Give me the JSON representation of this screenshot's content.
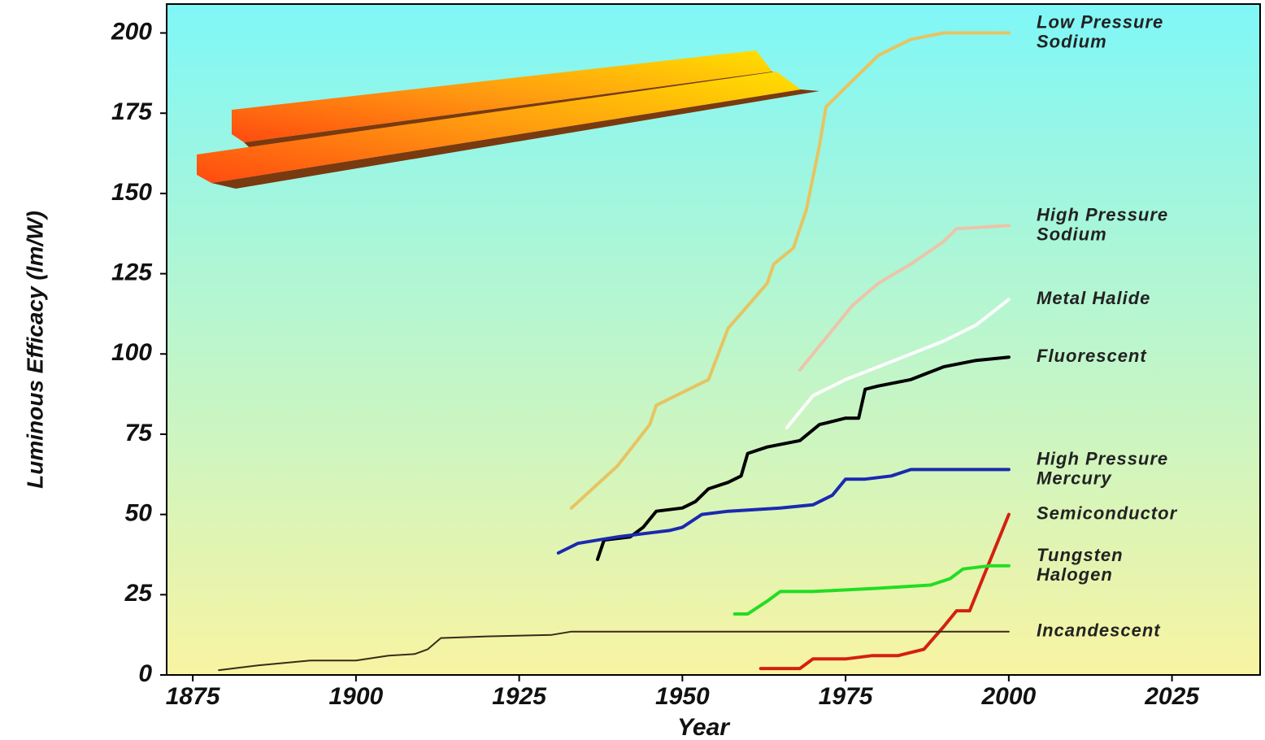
{
  "chart_data": {
    "type": "line",
    "xlabel": "Year",
    "ylabel": "Luminous Efficacy (lm/W)",
    "xlim": [
      1871,
      2038.5
    ],
    "ylim": [
      0,
      209
    ],
    "xticks": [
      1875,
      1900,
      1925,
      1950,
      1975,
      2000,
      2025
    ],
    "yticks": [
      0,
      25,
      50,
      75,
      100,
      125,
      150,
      175,
      200
    ],
    "series": [
      {
        "name": "Low Pressure\nSodium",
        "color": "#e6c462",
        "x": [
          1933,
          1940,
          1945,
          1946,
          1950,
          1954,
          1957,
          1960,
          1963,
          1964,
          1967,
          1969,
          1971,
          1972,
          1975,
          1980,
          1985,
          1990,
          2000
        ],
        "values": [
          52,
          65,
          78,
          84,
          88,
          92,
          108,
          115,
          122,
          128,
          133,
          145,
          165,
          177,
          183,
          193,
          198,
          200,
          200
        ]
      },
      {
        "name": "High Pressure\nSodium",
        "color": "#ecc4aa",
        "x": [
          1968,
          1972,
          1976,
          1980,
          1985,
          1990,
          1992,
          2000
        ],
        "values": [
          95,
          105,
          115,
          122,
          128,
          135,
          139,
          140
        ]
      },
      {
        "name": "Metal Halide",
        "color": "#ffffff",
        "x": [
          1966,
          1968,
          1970,
          1975,
          1980,
          1985,
          1990,
          1995,
          2000
        ],
        "values": [
          77,
          82,
          87,
          92,
          96,
          100,
          104,
          109,
          117
        ]
      },
      {
        "name": "Fluorescent",
        "color": "#000000",
        "x": [
          1937,
          1938,
          1942,
          1944,
          1946,
          1950,
          1952,
          1954,
          1957,
          1959,
          1960,
          1963,
          1968,
          1971,
          1975,
          1977,
          1978,
          1980,
          1985,
          1990,
          1995,
          2000
        ],
        "values": [
          36,
          42,
          43,
          46,
          51,
          52,
          54,
          58,
          60,
          62,
          69,
          71,
          73,
          78,
          80,
          80,
          89,
          90,
          92,
          96,
          98,
          99
        ]
      },
      {
        "name": "High Pressure\nMercury",
        "color": "#1a2ab0",
        "x": [
          1931,
          1934,
          1937,
          1940,
          1944,
          1948,
          1950,
          1953,
          1957,
          1965,
          1970,
          1973,
          1975,
          1978,
          1982,
          1985,
          1990,
          2000
        ],
        "values": [
          38,
          41,
          42,
          43,
          44,
          45,
          46,
          50,
          51,
          52,
          53,
          56,
          61,
          61,
          62,
          64,
          64,
          64
        ]
      },
      {
        "name": "Semiconductor",
        "color": "#d42010",
        "x": [
          1962,
          1968,
          1970,
          1975,
          1979,
          1983,
          1987,
          1990,
          1992,
          1994,
          1996,
          2000
        ],
        "values": [
          2,
          2,
          5,
          5,
          6,
          6,
          8,
          15,
          20,
          20,
          30,
          50
        ]
      },
      {
        "name": "Tungsten\nHalogen",
        "color": "#22dd22",
        "x": [
          1958,
          1960,
          1963,
          1965,
          1970,
          1980,
          1988,
          1991,
          1993,
          1997,
          2000
        ],
        "values": [
          19,
          19,
          23,
          26,
          26,
          27,
          28,
          30,
          33,
          34,
          34
        ]
      },
      {
        "name": "Incandescent",
        "color": "#3a2a18",
        "x": [
          1879,
          1885,
          1893,
          1900,
          1905,
          1909,
          1911,
          1913,
          1920,
          1930,
          1933,
          1940,
          2000
        ],
        "values": [
          1.5,
          3,
          4.5,
          4.5,
          6,
          6.5,
          8,
          11.5,
          12,
          12.5,
          13.5,
          13.5,
          13.5
        ]
      }
    ]
  }
}
